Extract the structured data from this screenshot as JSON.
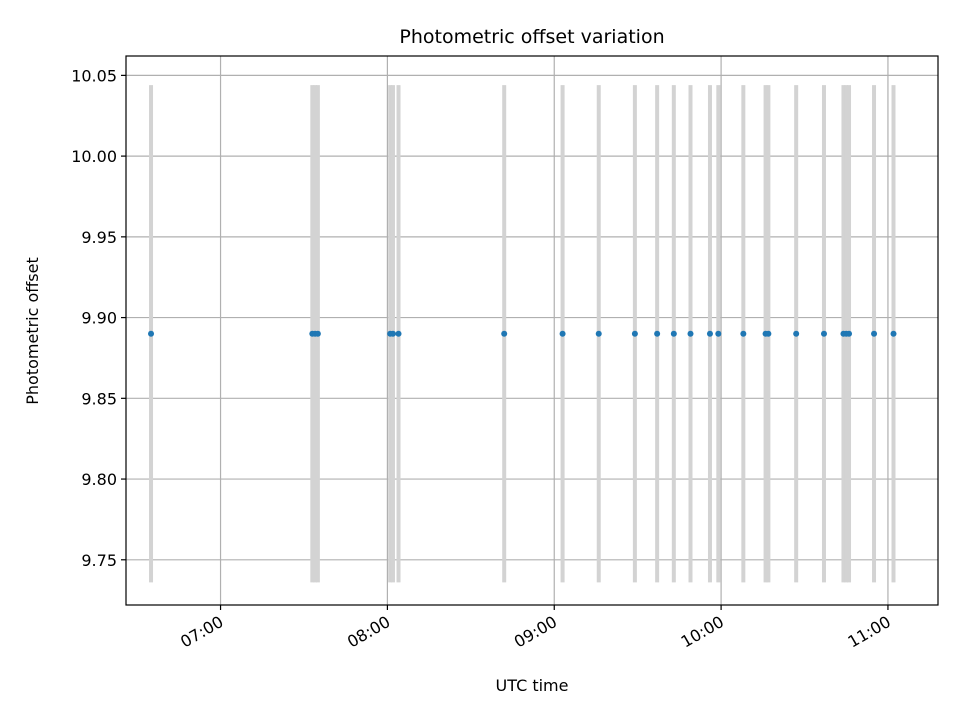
{
  "chart_data": {
    "type": "scatter",
    "title": "Photometric offset variation",
    "xlabel": "UTC time",
    "ylabel": "Photometric offset",
    "xlim": [
      "06:26",
      "11:18"
    ],
    "ylim": [
      9.722,
      10.062
    ],
    "x_ticks": [
      "07:00",
      "08:00",
      "09:00",
      "10:00",
      "11:00"
    ],
    "y_ticks": [
      "9.75",
      "9.80",
      "9.85",
      "9.90",
      "9.95",
      "10.00",
      "10.05"
    ],
    "grid": true,
    "marker_color": "#1f77b4",
    "errorbar_color": "#d3d3d3",
    "error": 0.154,
    "points": [
      {
        "x": "06:35",
        "y": 9.89
      },
      {
        "x": "07:33",
        "y": 9.89
      },
      {
        "x": "07:34",
        "y": 9.89
      },
      {
        "x": "07:35",
        "y": 9.89
      },
      {
        "x": "08:01",
        "y": 9.89
      },
      {
        "x": "08:02",
        "y": 9.89
      },
      {
        "x": "08:04",
        "y": 9.89
      },
      {
        "x": "08:42",
        "y": 9.89
      },
      {
        "x": "09:03",
        "y": 9.89
      },
      {
        "x": "09:16",
        "y": 9.89
      },
      {
        "x": "09:29",
        "y": 9.89
      },
      {
        "x": "09:37",
        "y": 9.89
      },
      {
        "x": "09:43",
        "y": 9.89
      },
      {
        "x": "09:49",
        "y": 9.89
      },
      {
        "x": "09:56",
        "y": 9.89
      },
      {
        "x": "09:59",
        "y": 9.89
      },
      {
        "x": "10:08",
        "y": 9.89
      },
      {
        "x": "10:16",
        "y": 9.89
      },
      {
        "x": "10:17",
        "y": 9.89
      },
      {
        "x": "10:27",
        "y": 9.89
      },
      {
        "x": "10:37",
        "y": 9.89
      },
      {
        "x": "10:44",
        "y": 9.89
      },
      {
        "x": "10:45",
        "y": 9.89
      },
      {
        "x": "10:46",
        "y": 9.89
      },
      {
        "x": "10:55",
        "y": 9.89
      },
      {
        "x": "11:02",
        "y": 9.89
      }
    ]
  }
}
